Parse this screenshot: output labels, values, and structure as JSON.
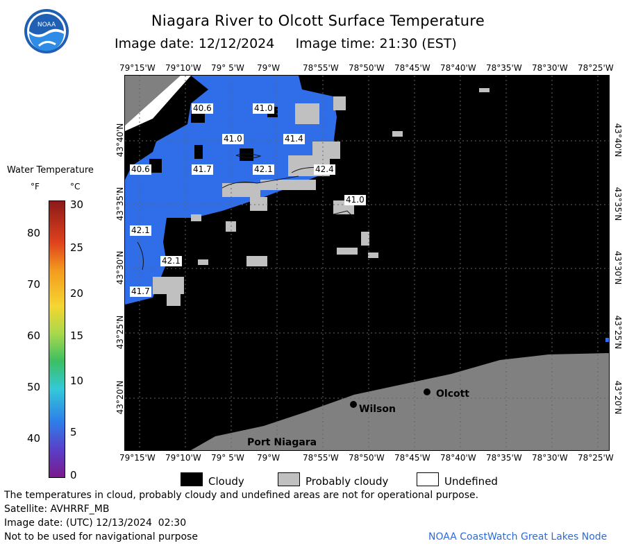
{
  "header": {
    "title": "Niagara River to Olcott Surface Temperature",
    "date_label": "Image date:",
    "date": "12/12/2024",
    "time_label": "Image time:",
    "time": "21:30 (EST)"
  },
  "logo": {
    "text": "NOAA",
    "colors": {
      "ring": "#ffffff",
      "sky": "#1f5fb4",
      "wave": "#7fb8f0"
    }
  },
  "map": {
    "longitude_labels": [
      "79°15'W",
      "79°10'W",
      "79° 5'W",
      "79°W",
      "78°55'W",
      "78°50'W",
      "78°45'W",
      "78°40'W",
      "78°35'W",
      "78°30'W",
      "78°25'W"
    ],
    "latitude_labels": [
      "43°40'N",
      "43°35'N",
      "43°30'N",
      "43°25'N",
      "43°20'N"
    ],
    "temperature_labels": [
      "40.6",
      "41.0",
      "41.0",
      "41.4",
      "40.6",
      "41.7",
      "42.1",
      "42.4",
      "41.0",
      "42.1",
      "42.1",
      "41.7"
    ],
    "places": [
      {
        "name": "Olcott"
      },
      {
        "name": "Wilson"
      },
      {
        "name": "Port Niagara"
      }
    ],
    "colors": {
      "cloud": "#000000",
      "probably_cloudy": "#c0c0c0",
      "land": "#808080",
      "undefined": "#ffffff",
      "water": "#2f6ee8"
    }
  },
  "legend": {
    "title": "Water Temperature",
    "unit_f": "°F",
    "unit_c": "°C",
    "f_ticks": [
      "80",
      "70",
      "60",
      "50",
      "40"
    ],
    "c_ticks": [
      "30",
      "25",
      "20",
      "15",
      "10",
      "5",
      "0"
    ]
  },
  "key": [
    {
      "label": "Cloudy",
      "color": "#000000"
    },
    {
      "label": "Probably cloudy",
      "color": "#c0c0c0"
    },
    {
      "label": "Undefined",
      "color": "#ffffff"
    }
  ],
  "footer": {
    "disclaimer": "The temperatures in cloud, probably cloudy and undefined areas are not for operational purpose.",
    "satellite": "Satellite: AVHRRF_MB",
    "utc_date": "Image date: (UTC) 12/13/2024  02:30",
    "nav_note": "Not to be used for navigational purpose",
    "credit": "NOAA CoastWatch Great Lakes Node"
  }
}
